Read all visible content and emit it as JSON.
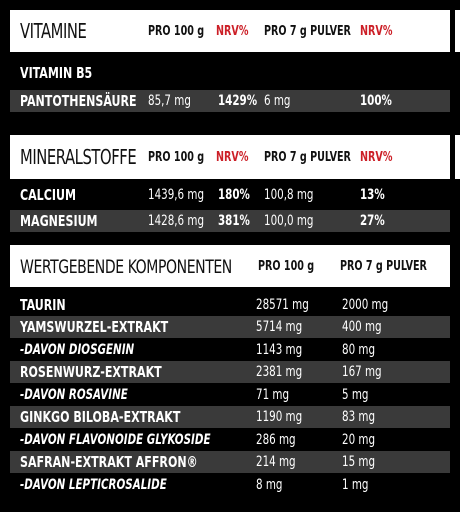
{
  "vitamine": {
    "title": "VITAMINE",
    "col_pro100": "PRO 100 g",
    "col_nrv1": "NRV%",
    "col_pro7": "PRO 7 g PULVER",
    "col_nrv2": "NRV%",
    "subheading": "VITAMIN B5",
    "rows": [
      {
        "name": "PANTOTHENSÄURE",
        "pro100": "85,7 mg",
        "nrv1": "1429%",
        "pro7": "6 mg",
        "nrv2": "100%"
      }
    ]
  },
  "mineralstoffe": {
    "title": "MINERALSTOFFE",
    "col_pro100": "PRO 100 g",
    "col_nrv1": "NRV%",
    "col_pro7": "PRO 7 g PULVER",
    "col_nrv2": "NRV%",
    "rows": [
      {
        "name": "CALCIUM",
        "pro100": "1439,6 mg",
        "nrv1": "180%",
        "pro7": "100,8 mg",
        "nrv2": "13%"
      },
      {
        "name": "MAGNESIUM",
        "pro100": "1428,6 mg",
        "nrv1": "381%",
        "pro7": "100,0 mg",
        "nrv2": "27%"
      }
    ]
  },
  "komponenten": {
    "title": "WERTGEBENDE KOMPONENTEN",
    "col_pro100": "PRO 100 g",
    "col_pro7": "PRO 7 g PULVER",
    "rows": [
      {
        "name": "TAURIN",
        "pro100": "28571 mg",
        "pro7": "2000 mg"
      },
      {
        "name": "YAMSWURZEL-EXTRAKT",
        "pro100": "5714 mg",
        "pro7": "400 mg"
      },
      {
        "name": "-DAVON DIOSGENIN",
        "pro100": "1143 mg",
        "pro7": "80 mg"
      },
      {
        "name": "ROSENWURZ-EXTRAKT",
        "pro100": "2381 mg",
        "pro7": "167 mg"
      },
      {
        "name": "-DAVON ROSAVINE",
        "pro100": "71 mg",
        "pro7": "5 mg"
      },
      {
        "name": "GINKGO BILOBA-EXTRAKT",
        "pro100": "1190 mg",
        "pro7": "83 mg"
      },
      {
        "name": "-DAVON FLAVONOIDE GLYKOSIDE",
        "pro100": "286 mg",
        "pro7": "20 mg"
      },
      {
        "name": "SAFRAN-EXTRAKT AFFRON®",
        "pro100": "214 mg",
        "pro7": "15 mg"
      },
      {
        "name": "-DAVON LEPTICROSALIDE",
        "pro100": "8 mg",
        "pro7": "1 mg"
      }
    ]
  }
}
